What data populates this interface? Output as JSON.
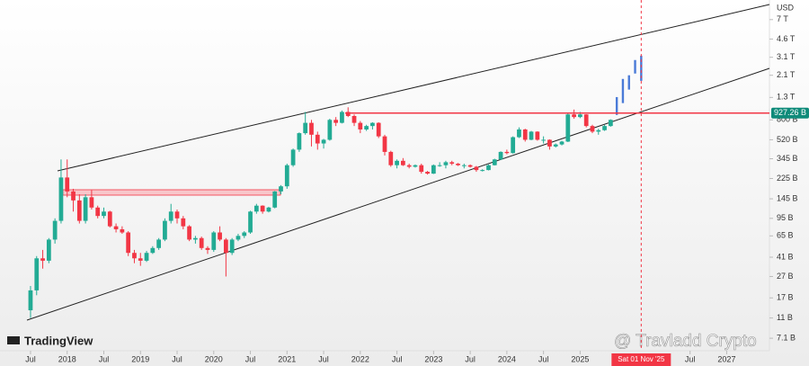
{
  "chart_data": {
    "type": "candlestick",
    "log_scale": true,
    "unit_label": "USD",
    "logo": "TradingView",
    "watermark": "@ Travladd Crypto",
    "up_color": "#22ab94",
    "down_color": "#f23645",
    "xlim": [
      "2017-02",
      "2027-08"
    ],
    "ylim": [
      5420000000.0,
      10700000000000.0
    ],
    "xticks": [
      {
        "value": "2017-07",
        "label": "Jul"
      },
      {
        "value": "2018-01",
        "label": "2018"
      },
      {
        "value": "2018-07",
        "label": "Jul"
      },
      {
        "value": "2019-01",
        "label": "2019"
      },
      {
        "value": "2019-07",
        "label": "Jul"
      },
      {
        "value": "2020-01",
        "label": "2020"
      },
      {
        "value": "2020-07",
        "label": "Jul"
      },
      {
        "value": "2021-01",
        "label": "2021"
      },
      {
        "value": "2021-07",
        "label": "Jul"
      },
      {
        "value": "2022-01",
        "label": "2022"
      },
      {
        "value": "2022-07",
        "label": "Jul"
      },
      {
        "value": "2023-01",
        "label": "2023"
      },
      {
        "value": "2023-07",
        "label": "Jul"
      },
      {
        "value": "2024-01",
        "label": "2024"
      },
      {
        "value": "2024-07",
        "label": "Jul"
      },
      {
        "value": "2025-01",
        "label": "2025"
      },
      {
        "value": "2026-07",
        "label": "Jul"
      },
      {
        "value": "2027-01",
        "label": "2027"
      }
    ],
    "yticks": [
      {
        "value": 7000000000000.0,
        "label": "7 T"
      },
      {
        "value": 4600000000000.0,
        "label": "4.6 T"
      },
      {
        "value": 3100000000000.0,
        "label": "3.1 T"
      },
      {
        "value": 2100000000000.0,
        "label": "2.1 T"
      },
      {
        "value": 1300000000000.0,
        "label": "1.3 T"
      },
      {
        "value": 800000000000.0,
        "label": "800 B"
      },
      {
        "value": 520000000000.0,
        "label": "520 B"
      },
      {
        "value": 345000000000.0,
        "label": "345 B"
      },
      {
        "value": 225000000000.0,
        "label": "225 B"
      },
      {
        "value": 145000000000.0,
        "label": "145 B"
      },
      {
        "value": 95000000000.0,
        "label": "95 B"
      },
      {
        "value": 65000000000.0,
        "label": "65 B"
      },
      {
        "value": 41000000000.0,
        "label": "41 B"
      },
      {
        "value": 27000000000.0,
        "label": "27 B"
      },
      {
        "value": 17000000000.0,
        "label": "17 B"
      },
      {
        "value": 11000000000.0,
        "label": "11 B"
      },
      {
        "value": 7100000000.0,
        "label": "7.1 B"
      }
    ],
    "price_line": {
      "value": 927260000000.0,
      "label": "927.26 B",
      "color": "#f23645"
    },
    "crosshair": {
      "x": "2025-11",
      "label": "Sat 01 Nov '25"
    },
    "x": [
      "2017-07",
      "2017-08",
      "2017-09",
      "2017-10",
      "2017-11",
      "2017-12",
      "2018-01",
      "2018-02",
      "2018-03",
      "2018-04",
      "2018-05",
      "2018-06",
      "2018-07",
      "2018-08",
      "2018-09",
      "2018-10",
      "2018-11",
      "2018-12",
      "2019-01",
      "2019-02",
      "2019-03",
      "2019-04",
      "2019-05",
      "2019-06",
      "2019-07",
      "2019-08",
      "2019-09",
      "2019-10",
      "2019-11",
      "2019-12",
      "2020-01",
      "2020-02",
      "2020-03",
      "2020-04",
      "2020-05",
      "2020-06",
      "2020-07",
      "2020-08",
      "2020-09",
      "2020-10",
      "2020-11",
      "2020-12",
      "2021-01",
      "2021-02",
      "2021-03",
      "2021-04",
      "2021-05",
      "2021-06",
      "2021-07",
      "2021-08",
      "2021-09",
      "2021-10",
      "2021-11",
      "2021-12",
      "2022-01",
      "2022-02",
      "2022-03",
      "2022-04",
      "2022-05",
      "2022-06",
      "2022-07",
      "2022-08",
      "2022-09",
      "2022-10",
      "2022-11",
      "2022-12",
      "2023-01",
      "2023-02",
      "2023-03",
      "2023-04",
      "2023-05",
      "2023-06",
      "2023-07",
      "2023-08",
      "2023-09",
      "2023-10",
      "2023-11",
      "2023-12",
      "2024-01",
      "2024-02",
      "2024-03",
      "2024-04",
      "2024-05",
      "2024-06",
      "2024-07",
      "2024-08",
      "2024-09",
      "2024-10",
      "2024-11",
      "2024-12",
      "2025-01",
      "2025-02",
      "2025-03",
      "2025-04",
      "2025-05",
      "2025-06"
    ],
    "ohlc": [
      [
        13000000000.0,
        22000000000.0,
        11000000000.0,
        20000000000.0
      ],
      [
        20000000000.0,
        42000000000.0,
        18000000000.0,
        40000000000.0
      ],
      [
        40000000000.0,
        48000000000.0,
        32000000000.0,
        38000000000.0
      ],
      [
        38000000000.0,
        62000000000.0,
        36000000000.0,
        60000000000.0
      ],
      [
        60000000000.0,
        95000000000.0,
        55000000000.0,
        90000000000.0
      ],
      [
        90000000000.0,
        340000000000.0,
        85000000000.0,
        230000000000.0
      ],
      [
        230000000000.0,
        340000000000.0,
        150000000000.0,
        170000000000.0
      ],
      [
        170000000000.0,
        180000000000.0,
        110000000000.0,
        140000000000.0
      ],
      [
        140000000000.0,
        160000000000.0,
        85000000000.0,
        90000000000.0
      ],
      [
        90000000000.0,
        160000000000.0,
        85000000000.0,
        150000000000.0
      ],
      [
        150000000000.0,
        175000000000.0,
        115000000000.0,
        120000000000.0
      ],
      [
        120000000000.0,
        125000000000.0,
        95000000000.0,
        100000000000.0
      ],
      [
        100000000000.0,
        120000000000.0,
        95000000000.0,
        110000000000.0
      ],
      [
        110000000000.0,
        112000000000.0,
        78000000000.0,
        80000000000.0
      ],
      [
        80000000000.0,
        85000000000.0,
        70000000000.0,
        75000000000.0
      ],
      [
        75000000000.0,
        80000000000.0,
        68000000000.0,
        70000000000.0
      ],
      [
        70000000000.0,
        72000000000.0,
        42000000000.0,
        45000000000.0
      ],
      [
        45000000000.0,
        48000000000.0,
        36000000000.0,
        40000000000.0
      ],
      [
        40000000000.0,
        45000000000.0,
        34000000000.0,
        38000000000.0
      ],
      [
        38000000000.0,
        47000000000.0,
        37000000000.0,
        45000000000.0
      ],
      [
        45000000000.0,
        52000000000.0,
        44000000000.0,
        50000000000.0
      ],
      [
        50000000000.0,
        62000000000.0,
        48000000000.0,
        60000000000.0
      ],
      [
        60000000000.0,
        95000000000.0,
        58000000000.0,
        90000000000.0
      ],
      [
        90000000000.0,
        130000000000.0,
        85000000000.0,
        110000000000.0
      ],
      [
        110000000000.0,
        115000000000.0,
        85000000000.0,
        95000000000.0
      ],
      [
        95000000000.0,
        100000000000.0,
        75000000000.0,
        80000000000.0
      ],
      [
        80000000000.0,
        82000000000.0,
        58000000000.0,
        60000000000.0
      ],
      [
        60000000000.0,
        65000000000.0,
        55000000000.0,
        62000000000.0
      ],
      [
        62000000000.0,
        64000000000.0,
        48000000000.0,
        50000000000.0
      ],
      [
        50000000000.0,
        52000000000.0,
        44000000000.0,
        48000000000.0
      ],
      [
        48000000000.0,
        72000000000.0,
        46000000000.0,
        70000000000.0
      ],
      [
        70000000000.0,
        80000000000.0,
        58000000000.0,
        60000000000.0
      ],
      [
        60000000000.0,
        62000000000.0,
        27000000000.0,
        45000000000.0
      ],
      [
        45000000000.0,
        62000000000.0,
        43000000000.0,
        60000000000.0
      ],
      [
        60000000000.0,
        68000000000.0,
        58000000000.0,
        65000000000.0
      ],
      [
        65000000000.0,
        72000000000.0,
        62000000000.0,
        70000000000.0
      ],
      [
        70000000000.0,
        112000000000.0,
        68000000000.0,
        110000000000.0
      ],
      [
        110000000000.0,
        130000000000.0,
        105000000000.0,
        125000000000.0
      ],
      [
        125000000000.0,
        126000000000.0,
        105000000000.0,
        110000000000.0
      ],
      [
        110000000000.0,
        122000000000.0,
        108000000000.0,
        120000000000.0
      ],
      [
        120000000000.0,
        172000000000.0,
        118000000000.0,
        170000000000.0
      ],
      [
        170000000000.0,
        195000000000.0,
        160000000000.0,
        190000000000.0
      ],
      [
        190000000000.0,
        310000000000.0,
        180000000000.0,
        300000000000.0
      ],
      [
        300000000000.0,
        430000000000.0,
        290000000000.0,
        420000000000.0
      ],
      [
        420000000000.0,
        610000000000.0,
        400000000000.0,
        600000000000.0
      ],
      [
        600000000000.0,
        950000000000.0,
        580000000000.0,
        750000000000.0
      ],
      [
        750000000000.0,
        800000000000.0,
        450000000000.0,
        580000000000.0
      ],
      [
        580000000000.0,
        620000000000.0,
        420000000000.0,
        480000000000.0
      ],
      [
        480000000000.0,
        530000000000.0,
        430000000000.0,
        520000000000.0
      ],
      [
        520000000000.0,
        820000000000.0,
        510000000000.0,
        800000000000.0
      ],
      [
        800000000000.0,
        850000000000.0,
        700000000000.0,
        750000000000.0
      ],
      [
        750000000000.0,
        980000000000.0,
        740000000000.0,
        950000000000.0
      ],
      [
        950000000000.0,
        1050000000000.0,
        850000000000.0,
        870000000000.0
      ],
      [
        870000000000.0,
        900000000000.0,
        700000000000.0,
        750000000000.0
      ],
      [
        750000000000.0,
        780000000000.0,
        600000000000.0,
        650000000000.0
      ],
      [
        650000000000.0,
        720000000000.0,
        630000000000.0,
        700000000000.0
      ],
      [
        700000000000.0,
        760000000000.0,
        650000000000.0,
        750000000000.0
      ],
      [
        750000000000.0,
        760000000000.0,
        540000000000.0,
        560000000000.0
      ],
      [
        560000000000.0,
        580000000000.0,
        370000000000.0,
        400000000000.0
      ],
      [
        400000000000.0,
        410000000000.0,
        290000000000.0,
        300000000000.0
      ],
      [
        300000000000.0,
        340000000000.0,
        280000000000.0,
        330000000000.0
      ],
      [
        330000000000.0,
        350000000000.0,
        295000000000.0,
        300000000000.0
      ],
      [
        300000000000.0,
        310000000000.0,
        280000000000.0,
        290000000000.0
      ],
      [
        290000000000.0,
        305000000000.0,
        285000000000.0,
        300000000000.0
      ],
      [
        300000000000.0,
        310000000000.0,
        250000000000.0,
        260000000000.0
      ],
      [
        260000000000.0,
        265000000000.0,
        245000000000.0,
        250000000000.0
      ],
      [
        250000000000.0,
        305000000000.0,
        248000000000.0,
        300000000000.0
      ],
      [
        300000000000.0,
        320000000000.0,
        290000000000.0,
        300000000000.0
      ],
      [
        300000000000.0,
        330000000000.0,
        280000000000.0,
        320000000000.0
      ],
      [
        320000000000.0,
        330000000000.0,
        300000000000.0,
        310000000000.0
      ],
      [
        310000000000.0,
        315000000000.0,
        295000000000.0,
        300000000000.0
      ],
      [
        300000000000.0,
        310000000000.0,
        280000000000.0,
        300000000000.0
      ],
      [
        300000000000.0,
        305000000000.0,
        285000000000.0,
        290000000000.0
      ],
      [
        290000000000.0,
        295000000000.0,
        260000000000.0,
        270000000000.0
      ],
      [
        270000000000.0,
        275000000000.0,
        262000000000.0,
        270000000000.0
      ],
      [
        270000000000.0,
        305000000000.0,
        268000000000.0,
        300000000000.0
      ],
      [
        300000000000.0,
        345000000000.0,
        298000000000.0,
        340000000000.0
      ],
      [
        340000000000.0,
        405000000000.0,
        335000000000.0,
        400000000000.0
      ],
      [
        400000000000.0,
        420000000000.0,
        380000000000.0,
        390000000000.0
      ],
      [
        390000000000.0,
        560000000000.0,
        385000000000.0,
        550000000000.0
      ],
      [
        550000000000.0,
        680000000000.0,
        540000000000.0,
        650000000000.0
      ],
      [
        650000000000.0,
        660000000000.0,
        500000000000.0,
        520000000000.0
      ],
      [
        520000000000.0,
        630000000000.0,
        515000000000.0,
        620000000000.0
      ],
      [
        620000000000.0,
        625000000000.0,
        510000000000.0,
        520000000000.0
      ],
      [
        520000000000.0,
        560000000000.0,
        480000000000.0,
        520000000000.0
      ],
      [
        520000000000.0,
        525000000000.0,
        420000000000.0,
        450000000000.0
      ],
      [
        450000000000.0,
        480000000000.0,
        440000000000.0,
        470000000000.0
      ],
      [
        470000000000.0,
        510000000000.0,
        460000000000.0,
        500000000000.0
      ],
      [
        500000000000.0,
        920000000000.0,
        495000000000.0,
        900000000000.0
      ],
      [
        900000000000.0,
        1000000000000.0,
        820000000000.0,
        850000000000.0
      ],
      [
        850000000000.0,
        950000000000.0,
        830000000000.0,
        900000000000.0
      ],
      [
        900000000000.0,
        905000000000.0,
        680000000000.0,
        700000000000.0
      ],
      [
        700000000000.0,
        720000000000.0,
        600000000000.0,
        620000000000.0
      ],
      [
        620000000000.0,
        660000000000.0,
        580000000000.0,
        640000000000.0
      ],
      [
        640000000000.0,
        720000000000.0,
        630000000000.0,
        700000000000.0
      ],
      [
        700000000000.0,
        810000000000.0,
        690000000000.0,
        800000000000.0
      ]
    ],
    "projection": {
      "color": "#4a7bd8",
      "x": [
        "2025-07",
        "2025-08",
        "2025-09",
        "2025-10",
        "2025-11"
      ],
      "ranges": [
        [
          890000000000.0,
          1310000000000.0
        ],
        [
          1150000000000.0,
          1940000000000.0
        ],
        [
          1540000000000.0,
          2100000000000.0
        ],
        [
          2180000000000.0,
          2920000000000.0
        ],
        [
          1860000000000.0,
          3210000000000.0
        ]
      ]
    }
  }
}
